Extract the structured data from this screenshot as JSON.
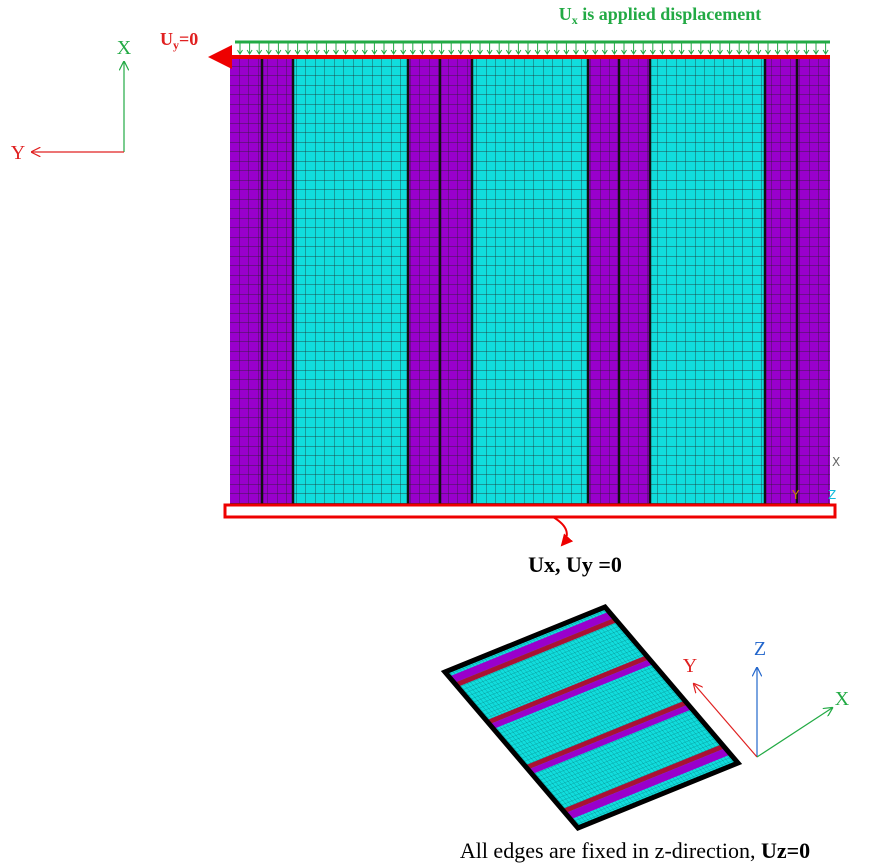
{
  "top_label": {
    "base": "U",
    "sub": "x",
    "rest": " is applied displacement"
  },
  "left_label": {
    "base": "U",
    "sub": "y",
    "rest": "=0"
  },
  "axes_2d": {
    "x": "X",
    "y": "Y"
  },
  "mesh_triad": {
    "x": "X",
    "y": "Y",
    "z": "Z"
  },
  "bottom_label": "Ux, Uy =0",
  "axes_3d": {
    "x": "X",
    "y": "Y",
    "z": "Z"
  },
  "caption": {
    "text": "All edges are fixed in z-direction, ",
    "bold": "Uz=0"
  }
}
